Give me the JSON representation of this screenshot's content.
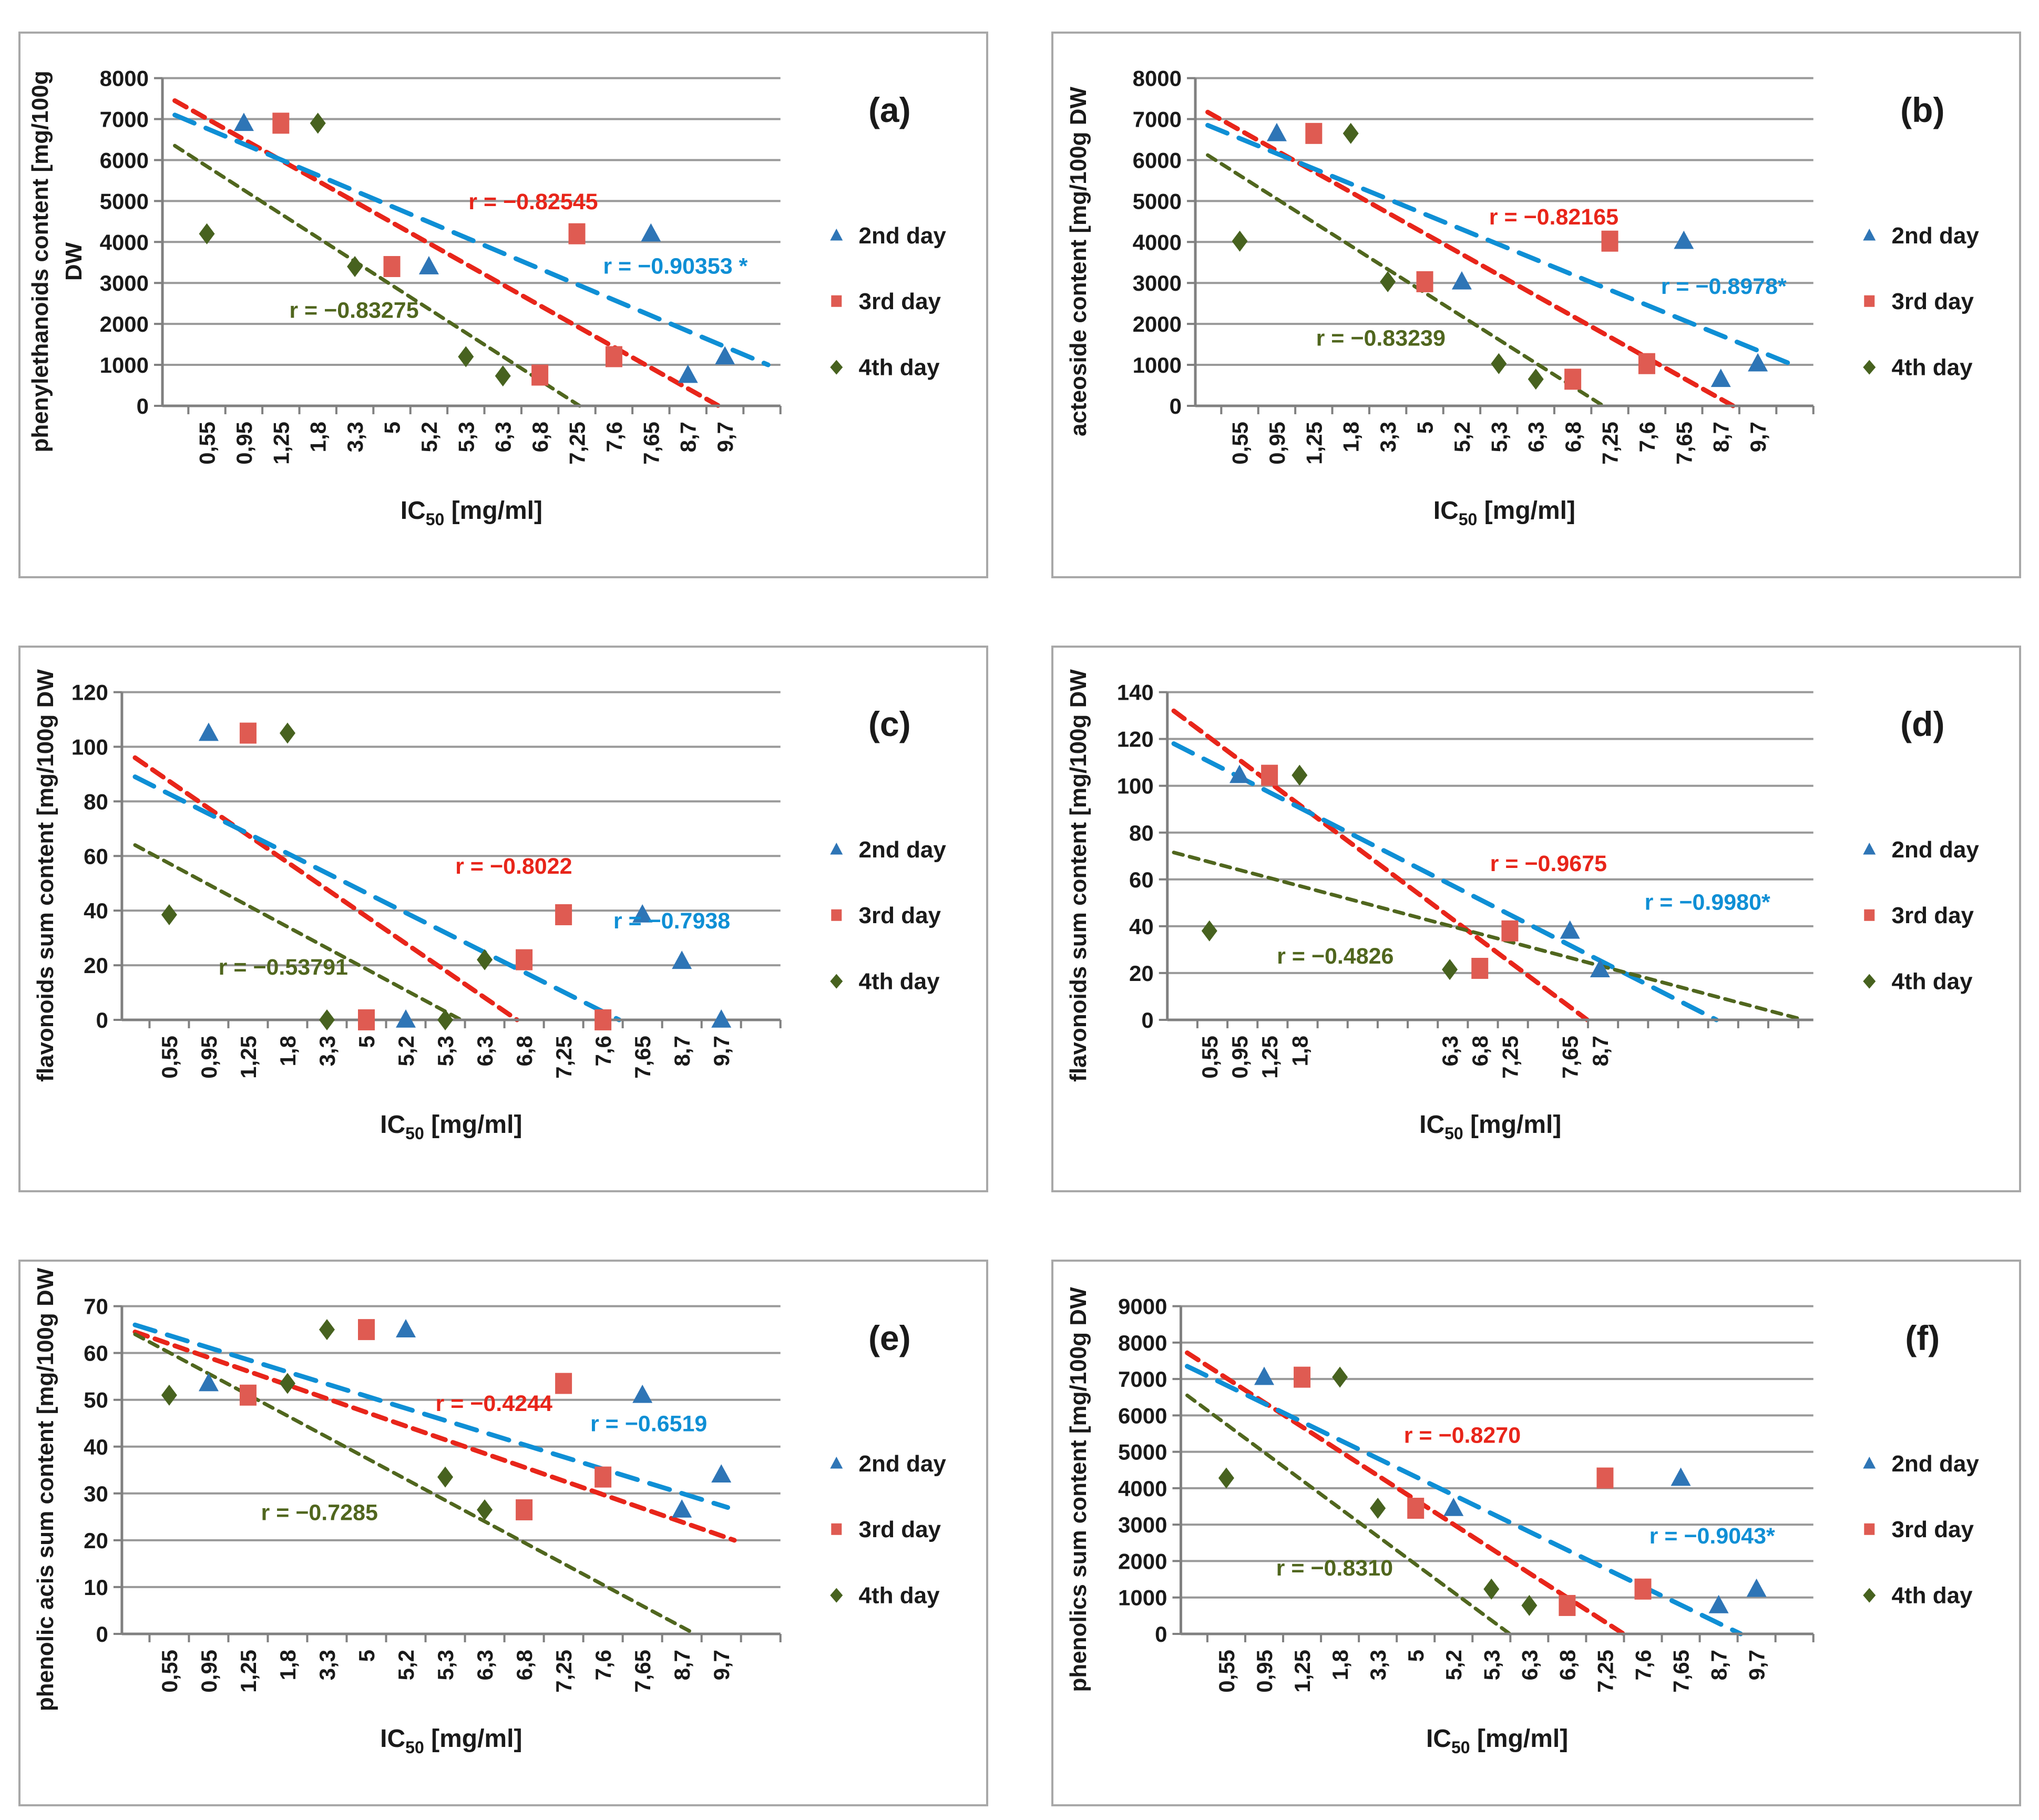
{
  "colors": {
    "day2": {
      "marker": "#2E75B6",
      "line": "#0F8FD5",
      "dash": "40 24",
      "dash_w": 9
    },
    "day3": {
      "marker": "#DF5B52",
      "line": "#E8251A",
      "dash": "25 15",
      "dash_w": 9
    },
    "day4": {
      "marker": "#47621F",
      "line": "#50661E",
      "dash": "18 13",
      "dash_w": 7
    },
    "grid": "#999999",
    "axis": "#808080",
    "text": "#1a1a1a",
    "panel_border": "#a8a8a8"
  },
  "legend_items": [
    {
      "key": "day2",
      "label": "2nd day",
      "marker": "triangle"
    },
    {
      "key": "day3",
      "label": "3rd day",
      "marker": "square"
    },
    {
      "key": "day4",
      "label": "4th day",
      "marker": "diamond"
    }
  ],
  "x_axis_title": {
    "main": "IC",
    "sub": "50",
    "unit": " [mg/ml]"
  },
  "chart_data": [
    {
      "id": "a",
      "letter": "(a)",
      "type": "scatter",
      "ylabel_lines": [
        "phenylethanoids content [mg/100g",
        "DW"
      ],
      "ylim": [
        0,
        8000
      ],
      "ystep": 1000,
      "plot_left": 0.147,
      "x_axis": {
        "mode": "category",
        "labels": [
          "0,55",
          "0,95",
          "1,25",
          "1,8",
          "3,3",
          "5",
          "5,2",
          "5,3",
          "6,3",
          "6,8",
          "7,25",
          "7,6",
          "7,65",
          "8,7",
          "9,7"
        ]
      },
      "series": {
        "day2": [
          [
            "0,95",
            6900
          ],
          [
            "5,2",
            3400
          ],
          [
            "7,65",
            4200
          ],
          [
            "8,7",
            750
          ],
          [
            "9,7",
            1200
          ]
        ],
        "day3": [
          [
            "1,25",
            6900
          ],
          [
            "5",
            3400
          ],
          [
            "6,8",
            750
          ],
          [
            "7,25",
            4200
          ],
          [
            "7,6",
            1200
          ]
        ],
        "day4": [
          [
            "0,55",
            4200
          ],
          [
            "1,8",
            6900
          ],
          [
            "3,3",
            3400
          ],
          [
            "5,3",
            1200
          ],
          [
            "6,3",
            730
          ]
        ]
      },
      "trendlines": [
        {
          "series": "day3",
          "from": [
            0.02,
            7450
          ],
          "to": [
            0.9,
            0
          ],
          "r_text": "r = −0.82545",
          "label_pos": [
            0.6,
            4800
          ]
        },
        {
          "series": "day2",
          "from": [
            0.02,
            7100
          ],
          "to": [
            0.98,
            1000
          ],
          "r_text": "r = −0.90353 *",
          "label_pos": [
            0.83,
            3230
          ]
        },
        {
          "series": "day4",
          "from": [
            0.02,
            6350
          ],
          "to": [
            0.675,
            0
          ],
          "r_text": "r = −0.83275",
          "label_pos": [
            0.31,
            2150
          ]
        }
      ]
    },
    {
      "id": "b",
      "letter": "(b)",
      "type": "scatter",
      "ylabel_lines": [
        "acteoside content [mg/100g DW"
      ],
      "ylim": [
        0,
        8000
      ],
      "ystep": 1000,
      "plot_left": 0.147,
      "x_axis": {
        "mode": "category",
        "labels": [
          "0,55",
          "0,95",
          "1,25",
          "1,8",
          "3,3",
          "5",
          "5,2",
          "5,3",
          "6,3",
          "6,8",
          "7,25",
          "7,6",
          "7,65",
          "8,7",
          "9,7"
        ]
      },
      "series": {
        "day2": [
          [
            "0,95",
            6650
          ],
          [
            "5,2",
            3030
          ],
          [
            "7,65",
            4020
          ],
          [
            "8,7",
            650
          ],
          [
            "9,7",
            1030
          ]
        ],
        "day3": [
          [
            "1,25",
            6650
          ],
          [
            "5",
            3030
          ],
          [
            "6,8",
            650
          ],
          [
            "7,25",
            4020
          ],
          [
            "7,6",
            1030
          ]
        ],
        "day4": [
          [
            "0,55",
            4020
          ],
          [
            "1,8",
            6650
          ],
          [
            "3,3",
            3030
          ],
          [
            "5,3",
            1030
          ],
          [
            "6,3",
            650
          ]
        ]
      },
      "trendlines": [
        {
          "series": "day3",
          "from": [
            0.02,
            7170
          ],
          "to": [
            0.87,
            0
          ],
          "r_text": "r = −0.82165",
          "label_pos": [
            0.58,
            4430
          ]
        },
        {
          "series": "day2",
          "from": [
            0.02,
            6850
          ],
          "to": [
            0.975,
            950
          ],
          "r_text": "r =  −0.8978*",
          "label_pos": [
            0.855,
            2730
          ]
        },
        {
          "series": "day4",
          "from": [
            0.02,
            6120
          ],
          "to": [
            0.66,
            0
          ],
          "r_text": "r = −0.83239",
          "label_pos": [
            0.3,
            1470
          ]
        }
      ]
    },
    {
      "id": "c",
      "letter": "(c)",
      "type": "scatter",
      "ylabel_lines": [
        "flavonoids sum content [mg/100g DW"
      ],
      "ylim": [
        0,
        120
      ],
      "ystep": 20,
      "plot_left": 0.105,
      "x_axis": {
        "mode": "category",
        "labels": [
          "0,55",
          "0,95",
          "1,25",
          "1,8",
          "3,3",
          "5",
          "5,2",
          "5,3",
          "6,3",
          "6,8",
          "7,25",
          "7,6",
          "7,65",
          "8,7",
          "9,7"
        ]
      },
      "series": {
        "day2": [
          [
            "0,95",
            105
          ],
          [
            "5,2",
            0
          ],
          [
            "7,65",
            38.5
          ],
          [
            "8,7",
            21.5
          ],
          [
            "9,7",
            0
          ]
        ],
        "day3": [
          [
            "1,25",
            105
          ],
          [
            "5",
            0
          ],
          [
            "6,8",
            22
          ],
          [
            "7,25",
            38.5
          ],
          [
            "7,6",
            0
          ]
        ],
        "day4": [
          [
            "0,55",
            38.5
          ],
          [
            "1,8",
            105
          ],
          [
            "3,3",
            0
          ],
          [
            "5,3",
            0
          ],
          [
            "6,3",
            22
          ]
        ]
      },
      "trendlines": [
        {
          "series": "day3",
          "from": [
            0.02,
            96
          ],
          "to": [
            0.6,
            0
          ],
          "r_text": "r = −0.8022",
          "label_pos": [
            0.595,
            53.5
          ]
        },
        {
          "series": "day2",
          "from": [
            0.02,
            89
          ],
          "to": [
            0.755,
            0
          ],
          "r_text": "r = −0.7938",
          "label_pos": [
            0.835,
            33.5
          ]
        },
        {
          "series": "day4",
          "from": [
            0.02,
            64
          ],
          "to": [
            0.515,
            0
          ],
          "r_text": "r = −0.53791",
          "label_pos": [
            0.245,
            16.5
          ]
        }
      ]
    },
    {
      "id": "d",
      "letter": "(d)",
      "type": "scatter",
      "ylabel_lines": [
        "flavonoids sum content [mg/100g DW"
      ],
      "ylim": [
        0,
        140
      ],
      "ystep": 20,
      "plot_left": 0.118,
      "x_axis": {
        "mode": "sparse",
        "slots": 21.5,
        "labels": [
          {
            "slot": 1.4,
            "text": "0,55"
          },
          {
            "slot": 2.4,
            "text": "0,95"
          },
          {
            "slot": 3.4,
            "text": "1,25"
          },
          {
            "slot": 4.4,
            "text": "1,8"
          },
          {
            "slot": 9.4,
            "text": "6,3"
          },
          {
            "slot": 10.4,
            "text": "6,8"
          },
          {
            "slot": 11.4,
            "text": "7,25"
          },
          {
            "slot": 13.4,
            "text": "7,65"
          },
          {
            "slot": 14.4,
            "text": "8,7"
          }
        ]
      },
      "series": {
        "day2": [
          [
            "0,95",
            104.5
          ],
          [
            "7,65",
            38
          ],
          [
            "8,7",
            21.5
          ]
        ],
        "day3": [
          [
            "1,25",
            104.5
          ],
          [
            "6,8",
            22
          ],
          [
            "7,25",
            38
          ]
        ],
        "day4": [
          [
            "0,55",
            38
          ],
          [
            "1,8",
            104.5
          ],
          [
            "6,3",
            21.5
          ]
        ]
      },
      "trendlines": [
        {
          "series": "day3",
          "from": [
            0.01,
            132
          ],
          "to": [
            0.65,
            0
          ],
          "r_text": "r = −0.9675",
          "label_pos": [
            0.59,
            63.5
          ]
        },
        {
          "series": "day2",
          "from": [
            0.01,
            118
          ],
          "to": [
            0.85,
            0
          ],
          "r_text": "r = −0.9980*",
          "label_pos": [
            0.836,
            47
          ]
        },
        {
          "series": "day4",
          "from": [
            0.01,
            71.5
          ],
          "to": [
            0.985,
            0
          ],
          "r_text": "r = −0.4826",
          "label_pos": [
            0.26,
            24
          ]
        }
      ]
    },
    {
      "id": "e",
      "letter": "(e)",
      "type": "scatter",
      "ylabel_lines": [
        "phenolic acis sum content [mg/100g DW"
      ],
      "ylim": [
        0,
        70
      ],
      "ystep": 10,
      "plot_left": 0.105,
      "x_axis": {
        "mode": "category",
        "labels": [
          "0,55",
          "0,95",
          "1,25",
          "1,8",
          "3,3",
          "5",
          "5,2",
          "5,3",
          "6,3",
          "6,8",
          "7,25",
          "7,6",
          "7,65",
          "8,7",
          "9,7"
        ]
      },
      "series": {
        "day2": [
          [
            "0,95",
            53.5
          ],
          [
            "5,2",
            65
          ],
          [
            "7,65",
            51
          ],
          [
            "8,7",
            26.5
          ],
          [
            "9,7",
            34
          ]
        ],
        "day3": [
          [
            "1,25",
            51
          ],
          [
            "5",
            65
          ],
          [
            "6,8",
            26.5
          ],
          [
            "7,25",
            53.5
          ],
          [
            "7,6",
            33.5
          ]
        ],
        "day4": [
          [
            "0,55",
            51
          ],
          [
            "1,8",
            53.5
          ],
          [
            "3,3",
            65
          ],
          [
            "5,3",
            33.5
          ],
          [
            "6,3",
            26.5
          ]
        ]
      },
      "trendlines": [
        {
          "series": "day3",
          "from": [
            0.02,
            64.5
          ],
          "to": [
            0.93,
            20
          ],
          "r_text": "r = −0.4244",
          "label_pos": [
            0.565,
            47.6
          ]
        },
        {
          "series": "day2",
          "from": [
            0.02,
            66
          ],
          "to": [
            0.92,
            27
          ],
          "r_text": "r = −0.6519",
          "label_pos": [
            0.8,
            43.3
          ]
        },
        {
          "series": "day4",
          "from": [
            0.02,
            64
          ],
          "to": [
            0.87,
            0
          ],
          "r_text": "r = −0.7285",
          "label_pos": [
            0.3,
            24.3
          ]
        }
      ]
    },
    {
      "id": "f",
      "letter": "(f)",
      "type": "scatter",
      "ylabel_lines": [
        "phenolics sum content [mg/100g DW"
      ],
      "ylim": [
        0,
        9000
      ],
      "ystep": 1000,
      "plot_left": 0.132,
      "x_axis": {
        "mode": "category",
        "labels": [
          "0,55",
          "0,95",
          "1,25",
          "1,8",
          "3,3",
          "5",
          "5,2",
          "5,3",
          "6,3",
          "6,8",
          "7,25",
          "7,6",
          "7,65",
          "8,7",
          "9,7"
        ]
      },
      "series": {
        "day2": [
          [
            "0,95",
            7050
          ],
          [
            "5,2",
            3450
          ],
          [
            "7,65",
            4280
          ],
          [
            "8,7",
            780
          ],
          [
            "9,7",
            1230
          ]
        ],
        "day3": [
          [
            "1,25",
            7050
          ],
          [
            "5",
            3450
          ],
          [
            "6,8",
            780
          ],
          [
            "7,25",
            4280
          ],
          [
            "7,6",
            1230
          ]
        ],
        "day4": [
          [
            "0,55",
            4280
          ],
          [
            "1,8",
            7050
          ],
          [
            "3,3",
            3450
          ],
          [
            "5,3",
            1230
          ],
          [
            "6,3",
            780
          ]
        ]
      },
      "trendlines": [
        {
          "series": "day3",
          "from": [
            0.01,
            7720
          ],
          "to": [
            0.7,
            0
          ],
          "r_text": "r = −0.8270",
          "label_pos": [
            0.445,
            5250
          ]
        },
        {
          "series": "day2",
          "from": [
            0.01,
            7350
          ],
          "to": [
            0.885,
            0
          ],
          "r_text": "r = −0.9043*",
          "label_pos": [
            0.84,
            2480
          ]
        },
        {
          "series": "day4",
          "from": [
            0.01,
            6550
          ],
          "to": [
            0.52,
            0
          ],
          "r_text": "r = −0.8310",
          "label_pos": [
            0.243,
            1600
          ]
        }
      ]
    }
  ]
}
